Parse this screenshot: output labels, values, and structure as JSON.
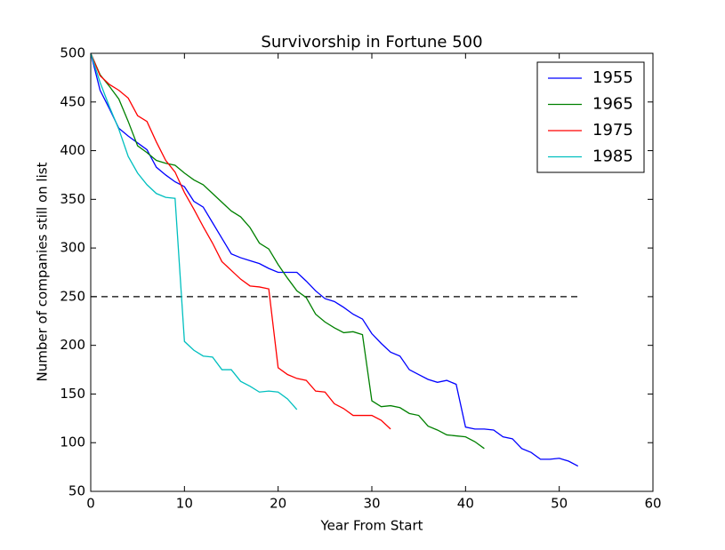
{
  "chart_data": {
    "type": "line",
    "title": "Survivorship in Fortune 500",
    "xlabel": "Year From Start",
    "ylabel": "Number of companies still on list",
    "xlim": [
      0,
      60
    ],
    "xticks": [
      0,
      10,
      20,
      30,
      40,
      50,
      60
    ],
    "ylim": [
      50,
      500
    ],
    "yticks": [
      50,
      100,
      150,
      200,
      250,
      300,
      350,
      400,
      450,
      500
    ],
    "legend": "upper right",
    "hlines": [
      {
        "y": 250,
        "x0": 0,
        "x1": 52,
        "color": "#000000",
        "style": "dashed"
      }
    ],
    "series": [
      {
        "name": "1955",
        "color": "#0000ff",
        "x": [
          0,
          1,
          2,
          3,
          4,
          5,
          6,
          7,
          8,
          9,
          10,
          11,
          12,
          13,
          14,
          15,
          16,
          17,
          18,
          19,
          20,
          21,
          22,
          23,
          24,
          25,
          26,
          27,
          28,
          29,
          30,
          31,
          32,
          33,
          34,
          35,
          36,
          37,
          38,
          39,
          40,
          41,
          42,
          43,
          44,
          45,
          46,
          47,
          48,
          49,
          50,
          51,
          52
        ],
        "values": [
          500,
          462,
          443,
          423,
          415,
          408,
          401,
          383,
          375,
          368,
          363,
          348,
          342,
          326,
          310,
          294,
          290,
          287,
          284,
          279,
          275,
          275,
          275,
          266,
          256,
          248,
          245,
          239,
          232,
          227,
          212,
          202,
          193,
          189,
          175,
          170,
          165,
          162,
          164,
          160,
          116,
          114,
          114,
          113,
          106,
          104,
          94,
          90,
          83,
          83,
          84,
          81,
          76
        ]
      },
      {
        "name": "1965",
        "color": "#008000",
        "x": [
          0,
          1,
          2,
          3,
          4,
          5,
          6,
          7,
          8,
          9,
          10,
          11,
          12,
          13,
          14,
          15,
          16,
          17,
          18,
          19,
          20,
          21,
          22,
          23,
          24,
          25,
          26,
          27,
          28,
          29,
          30,
          31,
          32,
          33,
          34,
          35,
          36,
          37,
          38,
          39,
          40,
          41,
          42
        ],
        "values": [
          500,
          478,
          466,
          453,
          430,
          405,
          398,
          390,
          387,
          385,
          377,
          370,
          365,
          356,
          347,
          338,
          332,
          321,
          305,
          299,
          283,
          269,
          256,
          249,
          232,
          224,
          218,
          213,
          214,
          211,
          143,
          137,
          138,
          136,
          130,
          128,
          117,
          113,
          108,
          107,
          106,
          101,
          94
        ]
      },
      {
        "name": "1975",
        "color": "#ff0000",
        "x": [
          0,
          1,
          2,
          3,
          4,
          5,
          6,
          7,
          8,
          9,
          10,
          11,
          12,
          13,
          14,
          15,
          16,
          17,
          18,
          19,
          20,
          21,
          22,
          23,
          24,
          25,
          26,
          27,
          28,
          29,
          30,
          31,
          32
        ],
        "values": [
          500,
          477,
          468,
          462,
          454,
          436,
          430,
          409,
          390,
          378,
          357,
          340,
          322,
          305,
          286,
          277,
          268,
          261,
          260,
          258,
          177,
          170,
          166,
          164,
          153,
          152,
          140,
          135,
          128,
          128,
          128,
          123,
          114
        ]
      },
      {
        "name": "1985",
        "color": "#00bfbf",
        "x": [
          0,
          1,
          2,
          3,
          4,
          5,
          6,
          7,
          8,
          9,
          10,
          11,
          12,
          13,
          14,
          15,
          16,
          17,
          18,
          19,
          20,
          21,
          22
        ],
        "values": [
          500,
          470,
          445,
          422,
          394,
          377,
          365,
          356,
          352,
          351,
          204,
          195,
          189,
          188,
          175,
          175,
          163,
          158,
          152,
          153,
          152,
          145,
          134
        ]
      }
    ]
  }
}
